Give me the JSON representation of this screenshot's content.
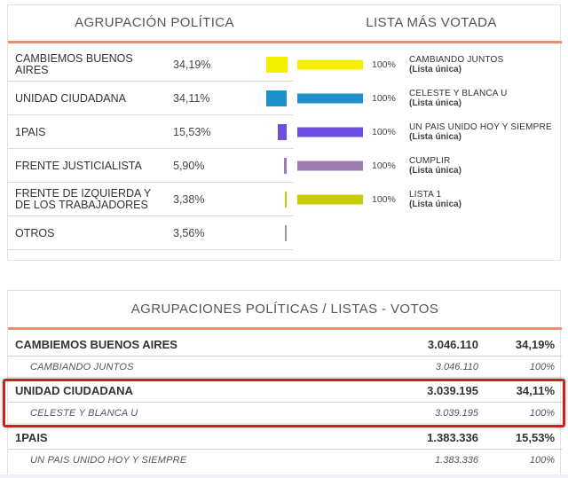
{
  "panel1": {
    "header_left": "AGRUPACIÓN POLÍTICA",
    "header_right": "LISTA MÁS VOTADA",
    "rows": [
      {
        "party": "CAMBIEMOS BUENOS AIRES",
        "pct": "34,19%",
        "color": "#f5f000",
        "list_pct": "100%",
        "list_name": "CAMBIANDO JUNTOS",
        "list_sub": "(Lista única)"
      },
      {
        "party": "UNIDAD CIUDADANA",
        "pct": "34,11%",
        "color": "#1e90cc",
        "list_pct": "100%",
        "list_name": "CELESTE Y BLANCA U",
        "list_sub": "(Lista única)"
      },
      {
        "party": "1PAIS",
        "pct": "15,53%",
        "color": "#6c4fe0",
        "list_pct": "100%",
        "list_name": "UN PAIS UNIDO HOY Y SIEMPRE",
        "list_sub": "(Lista única)"
      },
      {
        "party": "FRENTE JUSTICIALISTA",
        "pct": "5,90%",
        "color": "#9b7bb0",
        "list_pct": "100%",
        "list_name": "CUMPLIR",
        "list_sub": "(Lista única)"
      },
      {
        "party": "FRENTE DE IZQUIERDA Y DE LOS TRABAJADORES",
        "pct": "3,38%",
        "color": "#c7cc00",
        "list_pct": "100%",
        "list_name": "LISTA 1",
        "list_sub": "(Lista única)"
      },
      {
        "party": "OTROS",
        "pct": "3,56%",
        "color": "#9a9a9a"
      }
    ]
  },
  "panel2": {
    "header": "AGRUPACIONES POLÍTICAS / LISTAS - VOTOS",
    "groups": [
      {
        "name": "CAMBIEMOS BUENOS AIRES",
        "votes": "3.046.110",
        "pct": "34,19%",
        "list": {
          "name": "CAMBIANDO JUNTOS",
          "votes": "3.046.110",
          "pct": "100%"
        }
      },
      {
        "name": "UNIDAD CIUDADANA",
        "votes": "3.039.195",
        "pct": "34,11%",
        "list": {
          "name": "CELESTE Y BLANCA U",
          "votes": "3.039.195",
          "pct": "100%"
        }
      },
      {
        "name": "1PAIS",
        "votes": "1.383.336",
        "pct": "15,53%",
        "list": {
          "name": "UN PAIS UNIDO HOY Y SIEMPRE",
          "votes": "1.383.336",
          "pct": "100%"
        }
      }
    ]
  },
  "colors": {
    "accent_line": "#f28a6f",
    "highlight_border": "#cc1f1f"
  }
}
